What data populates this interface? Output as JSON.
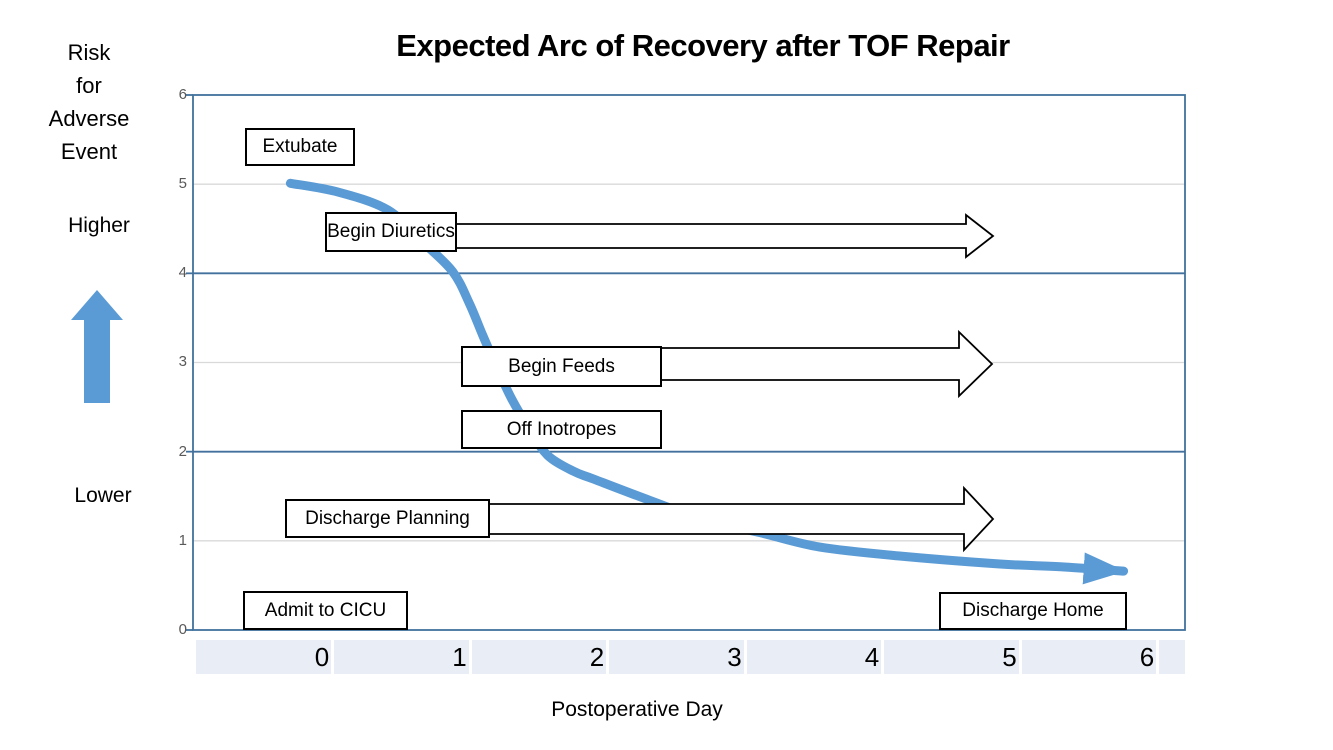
{
  "title": "Expected Arc of Recovery after TOF Repair",
  "y_axis": {
    "title_lines": [
      "Risk",
      "for",
      "Adverse",
      "Event"
    ],
    "higher_label": "Higher",
    "lower_label": "Lower",
    "ticks": [
      0,
      1,
      2,
      3,
      4,
      5,
      6
    ]
  },
  "x_axis": {
    "title": "Postoperative Day",
    "ticks": [
      0,
      1,
      2,
      3,
      4,
      5,
      6
    ]
  },
  "annotations": {
    "extubate": "Extubate",
    "begin_diuretics": "Begin Diuretics",
    "begin_feeds": "Begin Feeds",
    "off_inotropes": "Off Inotropes",
    "discharge_planning": "Discharge Planning",
    "admit_cicu": "Admit to CICU",
    "discharge_home": "Discharge Home"
  },
  "colors": {
    "curve": "#5B9BD5",
    "axis": "#41719C",
    "minor_grid": "#D9D9D9",
    "band": "#E9EDF5",
    "tick_text": "#595959"
  },
  "chart_data": {
    "type": "line",
    "title": "Expected Arc of Recovery after TOF Repair",
    "xlabel": "Postoperative Day",
    "ylabel": "Risk for Adverse Event",
    "xlim": [
      0,
      6
    ],
    "ylim": [
      0,
      6
    ],
    "grid": "horizontal",
    "legend": "none",
    "series": [
      {
        "name": "expected-recovery-arc",
        "points": [
          [
            -0.23,
            5.01
          ],
          [
            0.12,
            4.91
          ],
          [
            0.48,
            4.71
          ],
          [
            0.74,
            4.34
          ],
          [
            0.95,
            4.02
          ],
          [
            1.07,
            3.67
          ],
          [
            1.17,
            3.3
          ],
          [
            1.27,
            2.95
          ],
          [
            1.38,
            2.59
          ],
          [
            1.51,
            2.25
          ],
          [
            1.64,
            1.96
          ],
          [
            1.83,
            1.78
          ],
          [
            1.98,
            1.69
          ],
          [
            2.39,
            1.45
          ],
          [
            2.79,
            1.23
          ],
          [
            3.19,
            1.09
          ],
          [
            3.62,
            0.93
          ],
          [
            4.2,
            0.83
          ],
          [
            4.93,
            0.74
          ],
          [
            5.37,
            0.71
          ],
          [
            5.83,
            0.66
          ]
        ]
      }
    ],
    "events": [
      {
        "label": "Extubate",
        "day": 0.1,
        "risk": 5.5,
        "arrow": false
      },
      {
        "label": "Begin Diuretics",
        "day_start": 0.6,
        "day_end": 4.9,
        "risk": 4.4,
        "arrow": true
      },
      {
        "label": "Begin Feeds",
        "day_start": 1.3,
        "day_end": 4.9,
        "risk": 3.0,
        "arrow": true
      },
      {
        "label": "Off Inotropes",
        "day": 1.3,
        "risk": 2.3,
        "arrow": false
      },
      {
        "label": "Discharge Planning",
        "day_start": 0.3,
        "day_end": 4.9,
        "risk": 1.25,
        "arrow": true
      },
      {
        "label": "Admit to CICU",
        "day": 0.1,
        "risk": 0.3,
        "arrow": false
      },
      {
        "label": "Discharge Home",
        "day": 5.2,
        "risk": 0.3,
        "arrow": false
      }
    ]
  }
}
